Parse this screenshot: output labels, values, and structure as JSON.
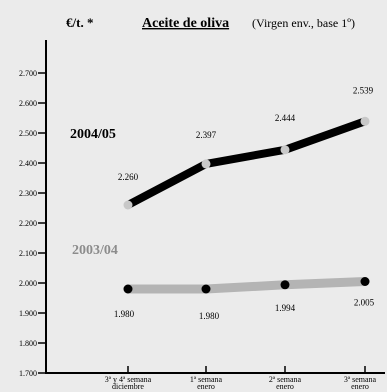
{
  "chart_data": {
    "type": "line",
    "unit_label": "€/t. *",
    "title": "Aceite de oliva",
    "subtitle": "(Virgen env., base 1º)",
    "categories": [
      [
        "3ª y 4ª semana",
        "diciembre"
      ],
      [
        "1ª semana",
        "enero"
      ],
      [
        "2ª semana",
        "enero"
      ],
      [
        "3ª semana",
        "enero"
      ]
    ],
    "ylim": [
      1700,
      2800
    ],
    "yticks": [
      1700,
      1800,
      1900,
      2000,
      2100,
      2200,
      2300,
      2400,
      2500,
      2600,
      2700
    ],
    "ytick_labels": [
      "1.700",
      "1.800",
      "1.900",
      "2.000",
      "2.100",
      "2.200",
      "2.300",
      "2.400",
      "2.500",
      "2.600",
      "2.700"
    ],
    "grid": false,
    "series": [
      {
        "name": "2004/05",
        "values": [
          2260,
          2397,
          2444,
          2539
        ],
        "labels": [
          "2.260",
          "2.397",
          "2.444",
          "2.539"
        ],
        "line_color": "#000000",
        "marker_color": "#c8c8c8",
        "label_color": "#000000"
      },
      {
        "name": "2003/04",
        "values": [
          1980,
          1980,
          1994,
          2005
        ],
        "labels": [
          "1.980",
          "1.980",
          "1.994",
          "2.005"
        ],
        "line_color": "#b4b4b4",
        "marker_color": "#000000",
        "label_color": "#8c8c8c"
      }
    ]
  }
}
